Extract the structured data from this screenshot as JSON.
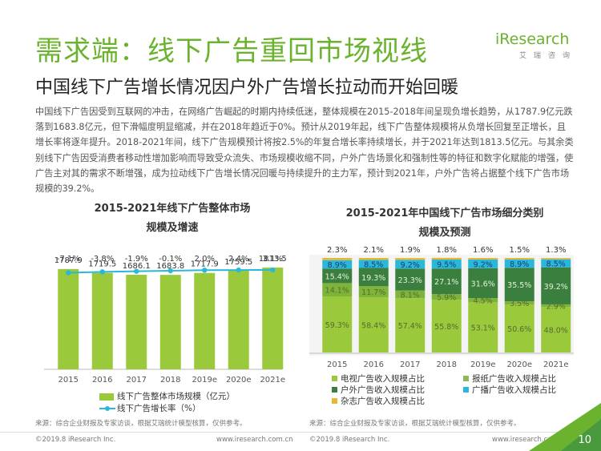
{
  "header": {
    "title": "需求端：线下广告重回市场视线",
    "subtitle": "中国线下广告增长情况因户外广告增长拉动而开始回暖",
    "logo_word": "iResearch",
    "logo_sub": "艾瑞咨询"
  },
  "intro": "中国线下广告因受到互联网的冲击，在网络广告崛起的时期内持续低迷，整体规模在2015-2018年间呈现负增长趋势，从1787.9亿元跌落到1683.8亿元，但下滑幅度明显缩减，并在2018年趋近于0%。预计从2019年起，线下广告整体规模将从负增长回复至正增长，且增长率将逐年提升。2018-2021年间，线下广告规模预计将按2.5%的年复合增长率持续增长，并于2021年达到1813.5亿元。与其余类别线下广告因受消费者移动性增加影响而导致受众流失、市场规模收缩不同，户外广告场景化和强制性等的特征和数字化赋能的增强，使广告主对其的需求不断增强，成为拉动线下广告增长情况回暖与持续提升的主力军，预计到2021年，户外广告将占据整个线下广告市场规模的39.2%。",
  "colors": {
    "brand_green": "#6bb32e",
    "bar_light_green": "#9bc93c",
    "line_cyan": "#2ab7dc",
    "tv": "#9bc93c",
    "newspaper": "#8fb85a",
    "outdoor": "#3b7f3f",
    "radio": "#2ab7dc",
    "magazine": "#e8b830"
  },
  "left_chart": {
    "title_line1": "2015-2021年线下广告整体市场",
    "title_line2": "规模及增速",
    "legend_bar": "线下广告整体市场规模（亿元）",
    "legend_line": "线下广告增长率（%）",
    "note": "来源：综合企业财报及专家访谈，根据艾瑞统计模型核算，仅供参考。",
    "value_labels": [
      "1787.9",
      "1719.5",
      "1686.1",
      "1683.8",
      "1717.9",
      "1759.5",
      "1813.5"
    ],
    "rate_labels": [
      "-7.1%",
      "-3.8%",
      "-1.9%",
      "-0.1%",
      "2.0%",
      "2.4%",
      "3.1%"
    ]
  },
  "right_chart": {
    "title_line1": "2015-2021年中国线下广告市场细分类别",
    "title_line2": "规模及预测",
    "note": "来源：综合企业财报及专家访谈，根据艾瑞统计模型核算，仅供参考。",
    "top_labels": [
      "2.3%",
      "2.1%",
      "1.9%",
      "1.8%",
      "1.6%",
      "1.5%",
      "1.3%"
    ],
    "legend": [
      "电视广告收入规模占比",
      "报纸广告收入规模占比",
      "户外广告收入规模占比",
      "广播广告收入规模占比",
      "杂志广告收入规模占比"
    ]
  },
  "chart_data": [
    {
      "type": "bar",
      "categories": [
        "2015",
        "2016",
        "2017",
        "2018",
        "2019e",
        "2020e",
        "2021e"
      ],
      "series": [
        {
          "name": "线下广告整体市场规模（亿元）",
          "type": "bar",
          "values": [
            1787.9,
            1719.5,
            1686.1,
            1683.8,
            1717.9,
            1759.5,
            1813.5
          ]
        },
        {
          "name": "线下广告增长率（%）",
          "type": "line",
          "values": [
            -7.1,
            -3.8,
            -1.9,
            -0.1,
            2.0,
            2.4,
            3.1
          ]
        }
      ],
      "title": "2015-2021年线下广告整体市场规模及增速"
    },
    {
      "type": "bar",
      "stacked": true,
      "categories": [
        "2015",
        "2016",
        "2017",
        "2018",
        "2019e",
        "2020e",
        "2021e"
      ],
      "series": [
        {
          "name": "电视广告收入规模占比",
          "values": [
            59.3,
            58.4,
            57.4,
            55.8,
            53.1,
            50.6,
            48.0
          ]
        },
        {
          "name": "广播广告收入规模占比",
          "values": [
            14.1,
            11.7,
            8.1,
            5.9,
            4.5,
            3.5,
            2.9
          ]
        },
        {
          "name": "户外广告收入规模占比",
          "values": [
            15.4,
            19.3,
            23.3,
            27.1,
            31.6,
            35.5,
            39.2
          ]
        },
        {
          "name": "报纸广告收入规模占比",
          "values": [
            8.9,
            8.5,
            9.2,
            9.5,
            9.2,
            8.9,
            8.5
          ]
        },
        {
          "name": "杂志广告收入规模占比",
          "values": [
            2.3,
            2.1,
            1.9,
            1.8,
            1.6,
            1.5,
            1.3
          ]
        }
      ],
      "title": "2015-2021年中国线下广告市场细分类别规模及预测",
      "ylim": [
        0,
        100
      ]
    }
  ],
  "footer": {
    "left_copyright": "©2019.8 iResearch Inc.",
    "left_site": "www.iresearch.com.cn",
    "right_copyright": "©2019.8 iResearch Inc.",
    "right_site": "www.iresearch.com.cn",
    "page_number": "10"
  }
}
